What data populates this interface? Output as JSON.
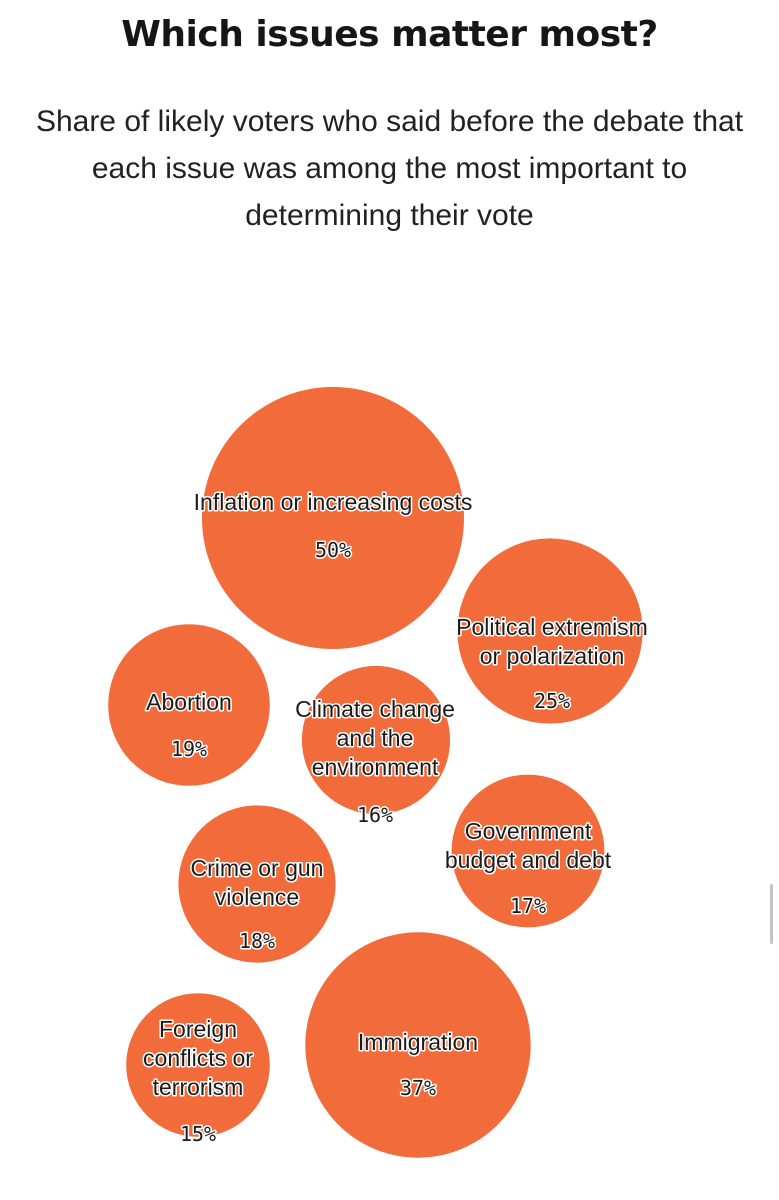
{
  "chart_data": {
    "type": "bubble",
    "title": "Which issues matter most?",
    "subtitle": "Share of likely voters who said before the debate that each issue was among the most important to determining their vote",
    "unit": "%",
    "color": "#F26B3A",
    "bubbles": [
      {
        "label": "Inflation or increasing costs",
        "value": 50,
        "value_label": "50%"
      },
      {
        "label": "Political extremism or polarization",
        "value": 25,
        "value_label": "25%"
      },
      {
        "label": "Abortion",
        "value": 19,
        "value_label": "19%"
      },
      {
        "label": "Climate change and the environment",
        "value": 16,
        "value_label": "16%"
      },
      {
        "label": "Government budget and debt",
        "value": 17,
        "value_label": "17%"
      },
      {
        "label": "Crime or gun violence",
        "value": 18,
        "value_label": "18%"
      },
      {
        "label": "Immigration",
        "value": 37,
        "value_label": "37%"
      },
      {
        "label": "Foreign conflicts or terrorism",
        "value": 15,
        "value_label": "15%"
      }
    ]
  }
}
